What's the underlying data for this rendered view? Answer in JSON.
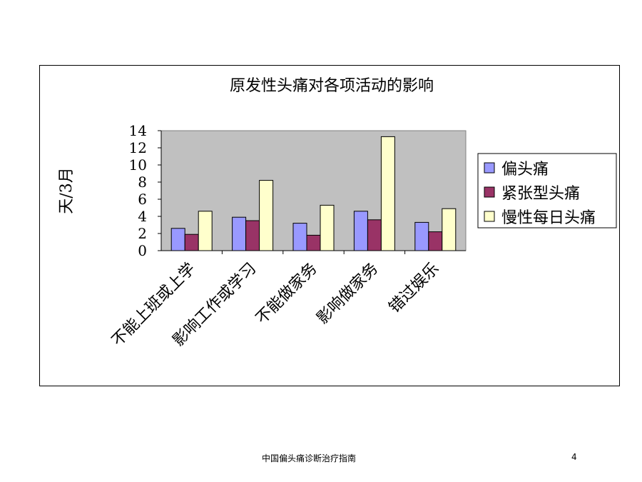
{
  "chart_data": {
    "type": "bar",
    "title": "原发性头痛对各项活动的影响",
    "ylabel": "天/3月",
    "xlabel": "",
    "ylim": [
      0,
      14
    ],
    "yticks": [
      0,
      2,
      4,
      6,
      8,
      10,
      12,
      14
    ],
    "categories": [
      "不能上班或上学",
      "影响工作或学习",
      "不能做家务",
      "影响做家务",
      "错过娱乐"
    ],
    "series": [
      {
        "name": "偏头痛",
        "values": [
          2.6,
          3.9,
          3.2,
          4.6,
          3.3
        ]
      },
      {
        "name": "紧张型头痛",
        "values": [
          1.9,
          3.5,
          1.8,
          3.6,
          2.2
        ]
      },
      {
        "name": "慢性每日头痛",
        "values": [
          4.6,
          8.2,
          5.3,
          13.3,
          4.9
        ]
      }
    ],
    "colors": [
      "#9999ff",
      "#993366",
      "#ffffcc"
    ],
    "plot_background": "#c0c0c0",
    "grid": false,
    "legend_position": "right"
  },
  "footer": {
    "title": "中国偏头痛诊断治疗指南",
    "page_number": "4"
  }
}
